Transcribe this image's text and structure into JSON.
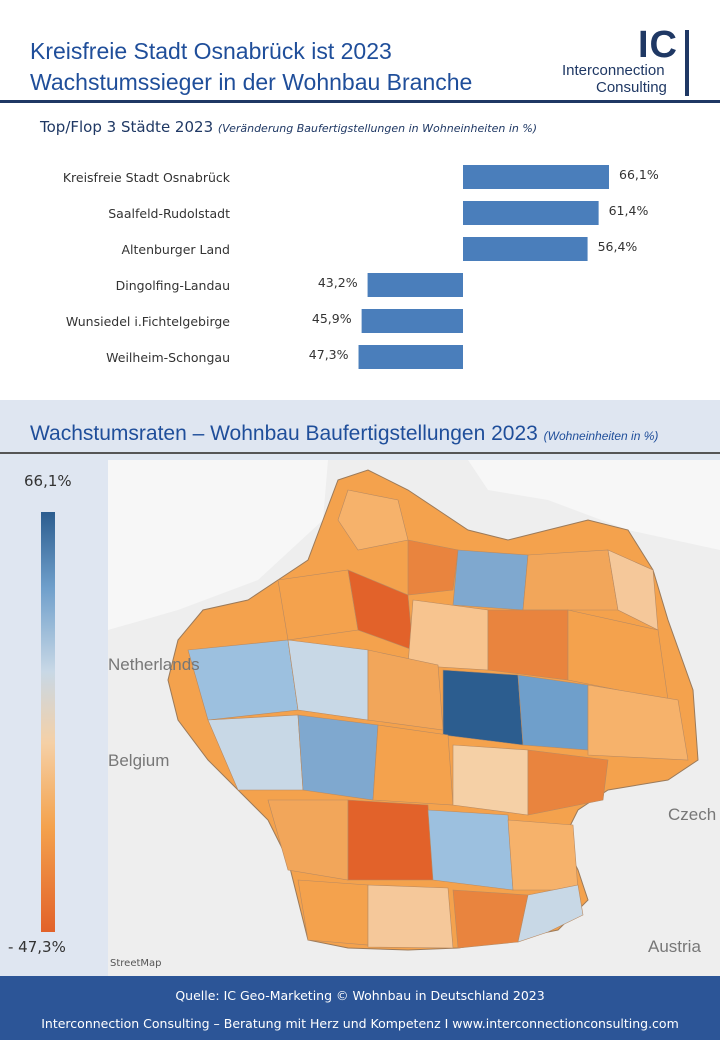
{
  "header": {
    "title_line1": "Kreisfreie Stadt Osnabrück  ist 2023",
    "title_line2": "Wachstumssieger in der Wohnbau Branche",
    "logo_mark": "IC",
    "logo_line1": "Interconnection",
    "logo_line2": "Consulting"
  },
  "chart_data": {
    "type": "bar",
    "title": "Top/Flop 3 Städte 2023",
    "subtitle": "(Veränderung Baufertigstellungen in Wohneinheiten in %)",
    "categories": [
      "Kreisfreie Stadt Osnabrück",
      "Saalfeld-Rudolstadt",
      "Altenburger Land",
      "Dingolfing-Landau",
      "Wunsiedel i.Fichtelgebirge",
      "Weilheim-Schongau"
    ],
    "values": [
      66.1,
      61.4,
      56.4,
      -43.2,
      -45.9,
      -47.3
    ],
    "value_labels": [
      "66,1%",
      "61,4%",
      "56,4%",
      "43,2%",
      "45,9%",
      "47,3%"
    ],
    "orientation": "horizontal",
    "bar_color": "#4a7ebb"
  },
  "map": {
    "title": "Wachstumsraten – Wohnbau Baufertigstellungen 2023",
    "subtitle": "(Wohneinheiten in %)",
    "legend_max": "66,1%",
    "legend_min": "- 47,3%",
    "countries": [
      "Netherlands",
      "Belgium",
      "Czech",
      "Austria"
    ],
    "attribution": "StreetMap",
    "colors": {
      "high": "#2c5d8f",
      "mid": "#c8d8e6",
      "low": "#e2622a",
      "neutral": "#f5d0a6"
    }
  },
  "footer": {
    "line1": "Quelle: IC Geo-Marketing © Wohnbau in Deutschland 2023",
    "line2": "Interconnection Consulting – Beratung mit Herz und Kompetenz  I  www.interconnectionconsulting.com"
  }
}
